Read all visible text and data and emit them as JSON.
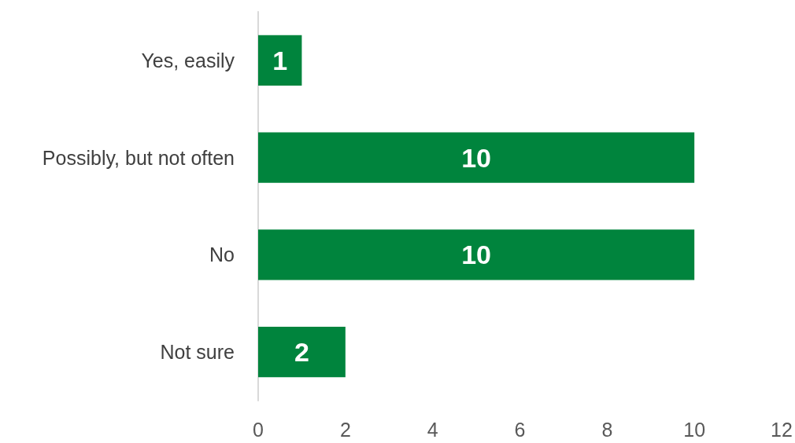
{
  "chart_data": {
    "type": "bar",
    "orientation": "horizontal",
    "categories": [
      "Yes, easily",
      "Possibly, but not often",
      "No",
      "Not sure"
    ],
    "values": [
      1,
      10,
      10,
      2
    ],
    "color": "#00843d",
    "xlim": [
      0,
      12
    ],
    "xticks": [
      0,
      2,
      4,
      6,
      8,
      10,
      12
    ],
    "grid": false,
    "data_labels": true
  }
}
